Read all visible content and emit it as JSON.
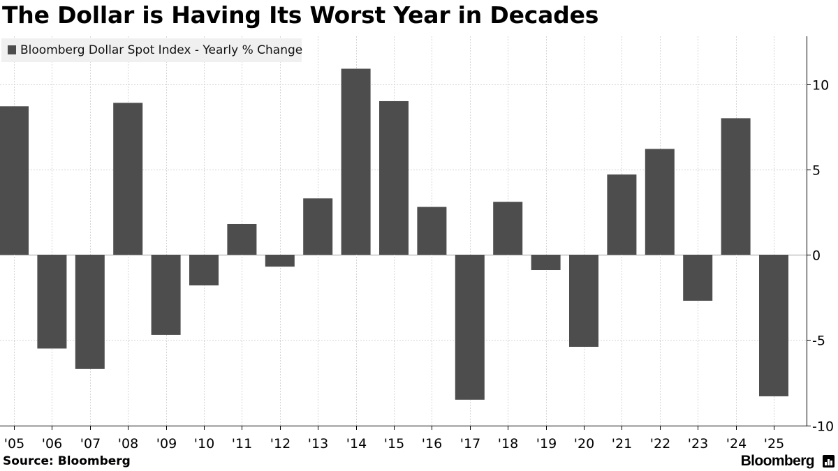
{
  "title": "The Dollar is Having Its Worst Year in Decades",
  "source": "Source: Bloomberg",
  "brand": "Bloomberg",
  "colors": {
    "bar": "#4d4d4d",
    "grid": "#d4d4d4",
    "legend_bg": "#f0f0f0",
    "text": "#000000"
  },
  "chart_data": {
    "type": "bar",
    "categories": [
      "'05",
      "'06",
      "'07",
      "'08",
      "'09",
      "'10",
      "'11",
      "'12",
      "'13",
      "'14",
      "'15",
      "'16",
      "'17",
      "'18",
      "'19",
      "'20",
      "'21",
      "'22",
      "'23",
      "'24",
      "'25"
    ],
    "series": [
      {
        "name": "Bloomberg Dollar Spot Index - Yearly % Change",
        "values": [
          8.7,
          -5.5,
          -6.7,
          8.9,
          -4.7,
          -1.8,
          1.8,
          -0.7,
          3.3,
          10.9,
          9.0,
          2.8,
          -8.5,
          3.1,
          -0.9,
          -5.4,
          4.7,
          6.2,
          -2.7,
          8.0,
          -8.3
        ]
      }
    ],
    "y_ticks": [
      "10",
      "5",
      "0",
      "-5",
      "-10"
    ],
    "y_tick_values": [
      10,
      5,
      0,
      -5,
      -10
    ],
    "ylim": [
      -10,
      12.5
    ],
    "y_axis_side": "right",
    "grid": true,
    "legend": "top-left"
  }
}
